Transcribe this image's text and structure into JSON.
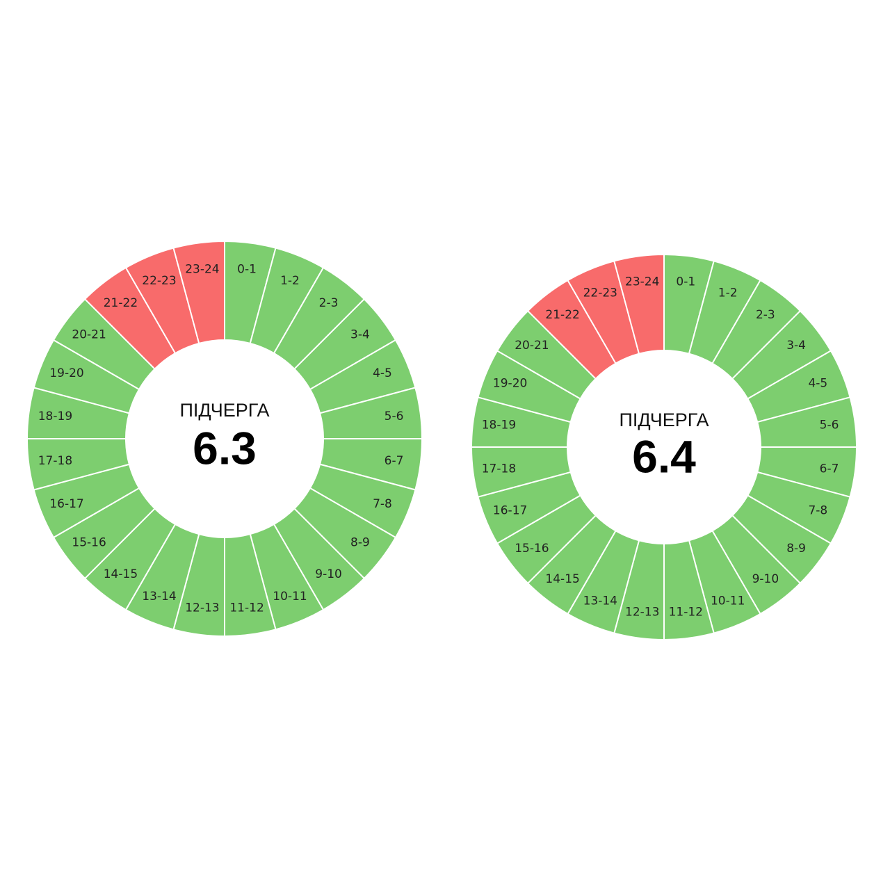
{
  "diagrams": [
    {
      "title": "ПІДЧЕРГА",
      "queue": "6.3",
      "segments": [
        {
          "label": "0-1",
          "color": "#7dce6f"
        },
        {
          "label": "1-2",
          "color": "#7dce6f"
        },
        {
          "label": "2-3",
          "color": "#7dce6f"
        },
        {
          "label": "3-4",
          "color": "#7dce6f"
        },
        {
          "label": "4-5",
          "color": "#7dce6f"
        },
        {
          "label": "5-6",
          "color": "#7dce6f"
        },
        {
          "label": "6-7",
          "color": "#7dce6f"
        },
        {
          "label": "7-8",
          "color": "#7dce6f"
        },
        {
          "label": "8-9",
          "color": "#7dce6f"
        },
        {
          "label": "9-10",
          "color": "#7dce6f"
        },
        {
          "label": "10-11",
          "color": "#7dce6f"
        },
        {
          "label": "11-12",
          "color": "#7dce6f"
        },
        {
          "label": "12-13",
          "color": "#7dce6f"
        },
        {
          "label": "13-14",
          "color": "#7dce6f"
        },
        {
          "label": "14-15",
          "color": "#7dce6f"
        },
        {
          "label": "15-16",
          "color": "#7dce6f"
        },
        {
          "label": "16-17",
          "color": "#7dce6f"
        },
        {
          "label": "17-18",
          "color": "#7dce6f"
        },
        {
          "label": "18-19",
          "color": "#7dce6f"
        },
        {
          "label": "19-20",
          "color": "#7dce6f"
        },
        {
          "label": "20-21",
          "color": "#7dce6f"
        },
        {
          "label": "21-22",
          "color": "#f86b6b"
        },
        {
          "label": "22-23",
          "color": "#f86b6b"
        },
        {
          "label": "23-24",
          "color": "#f86b6b"
        }
      ]
    },
    {
      "title": "ПІДЧЕРГА",
      "queue": "6.4",
      "segments": [
        {
          "label": "0-1",
          "color": "#7dce6f"
        },
        {
          "label": "1-2",
          "color": "#7dce6f"
        },
        {
          "label": "2-3",
          "color": "#7dce6f"
        },
        {
          "label": "3-4",
          "color": "#7dce6f"
        },
        {
          "label": "4-5",
          "color": "#7dce6f"
        },
        {
          "label": "5-6",
          "color": "#7dce6f"
        },
        {
          "label": "6-7",
          "color": "#7dce6f"
        },
        {
          "label": "7-8",
          "color": "#7dce6f"
        },
        {
          "label": "8-9",
          "color": "#7dce6f"
        },
        {
          "label": "9-10",
          "color": "#7dce6f"
        },
        {
          "label": "10-11",
          "color": "#7dce6f"
        },
        {
          "label": "11-12",
          "color": "#7dce6f"
        },
        {
          "label": "12-13",
          "color": "#7dce6f"
        },
        {
          "label": "13-14",
          "color": "#7dce6f"
        },
        {
          "label": "14-15",
          "color": "#7dce6f"
        },
        {
          "label": "15-16",
          "color": "#7dce6f"
        },
        {
          "label": "16-17",
          "color": "#7dce6f"
        },
        {
          "label": "17-18",
          "color": "#7dce6f"
        },
        {
          "label": "18-19",
          "color": "#7dce6f"
        },
        {
          "label": "19-20",
          "color": "#7dce6f"
        },
        {
          "label": "20-21",
          "color": "#7dce6f"
        },
        {
          "label": "21-22",
          "color": "#f86b6b"
        },
        {
          "label": "22-23",
          "color": "#f86b6b"
        },
        {
          "label": "23-24",
          "color": "#f86b6b"
        }
      ]
    }
  ]
}
